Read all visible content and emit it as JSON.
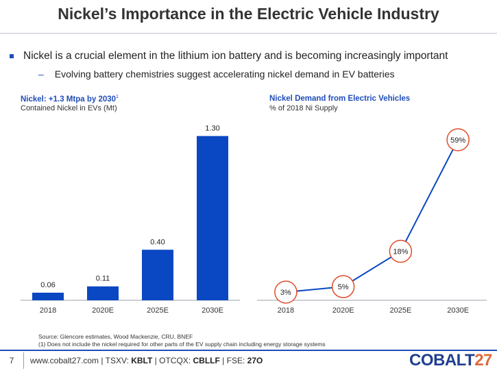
{
  "header": {
    "title": "Nickel’s Importance in the Electric Vehicle Industry"
  },
  "bullets": {
    "main": "Nickel is a crucial element in the lithium ion battery and is becoming increasingly important",
    "sub_mark": "–",
    "sub": "Evolving battery chemistries suggest accelerating nickel demand in EV batteries"
  },
  "left_chart": {
    "title": "Nickel: +1.3 Mtpa by 2030",
    "title_sup": "1",
    "subtitle": "Contained Nickel in EVs (Mt)"
  },
  "right_chart": {
    "title": "Nickel Demand from Electric Vehicles",
    "subtitle": "% of 2018 Ni Supply"
  },
  "chart_data": [
    {
      "type": "bar",
      "title": "Nickel: +1.3 Mtpa by 2030",
      "ylabel": "Contained Nickel in EVs (Mt)",
      "categories": [
        "2018",
        "2020E",
        "2025E",
        "2030E"
      ],
      "values": [
        0.06,
        0.11,
        0.4,
        1.3
      ],
      "data_labels": [
        "0.06",
        "0.11",
        "0.40",
        "1.30"
      ],
      "ylim": [
        0,
        1.4
      ],
      "grid": false,
      "color": "#0a47c2"
    },
    {
      "type": "line",
      "title": "Nickel Demand from Electric Vehicles",
      "ylabel": "% of 2018 Ni Supply",
      "categories": [
        "2018",
        "2020E",
        "2025E",
        "2030E"
      ],
      "values": [
        3,
        5,
        18,
        59
      ],
      "data_labels": [
        "3%",
        "5%",
        "18%",
        "59%"
      ],
      "ylim": [
        0,
        65
      ],
      "grid": false,
      "line_color": "#0a47c2",
      "marker_border_color": "#e04a2a"
    }
  ],
  "source": {
    "line1": "Source: Glencore estimates, Wood Mackenzie, CRU, BNEF",
    "line2": "(1)    Does not include the nickel required for other parts of the EV supply chain including energy storage systems"
  },
  "footer": {
    "page_number": "7",
    "website": "www.cobalt27.com",
    "sep": "|",
    "tsxv_label": "TSXV:",
    "tsxv_value": "KBLT",
    "otcqx_label": "OTCQX:",
    "otcqx_value": "CBLLF",
    "fse_label": "FSE:",
    "fse_value": "27O",
    "logo_main": "COBALT",
    "logo_num": "27"
  }
}
